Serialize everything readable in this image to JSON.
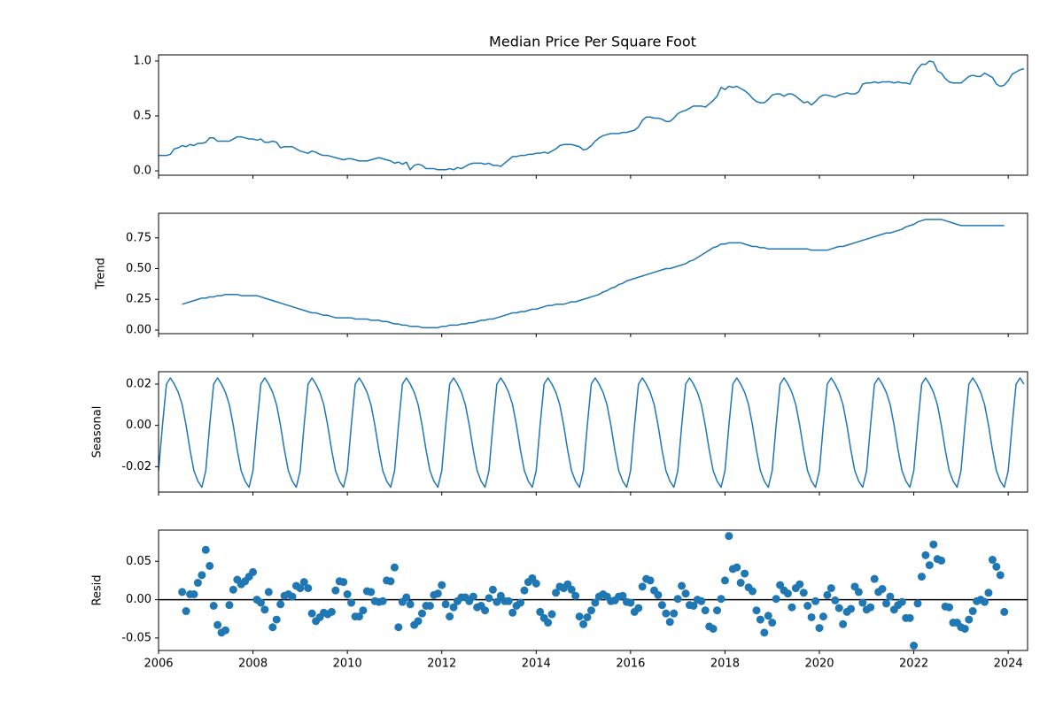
{
  "chart_data": {
    "type": "decomposition",
    "title": "Median Price Per Square Foot",
    "xlim": [
      2006,
      2024.41
    ],
    "xticks": [
      2006,
      2008,
      2010,
      2012,
      2014,
      2016,
      2018,
      2020,
      2022,
      2024
    ],
    "x": [
      2006,
      2006.083,
      2006.167,
      2006.25,
      2006.333,
      2006.417,
      2006.5,
      2006.583,
      2006.667,
      2006.75,
      2006.833,
      2006.917,
      2007,
      2007.083,
      2007.167,
      2007.25,
      2007.333,
      2007.417,
      2007.5,
      2007.583,
      2007.667,
      2007.75,
      2007.833,
      2007.917,
      2008,
      2008.083,
      2008.167,
      2008.25,
      2008.333,
      2008.417,
      2008.5,
      2008.583,
      2008.667,
      2008.75,
      2008.833,
      2008.917,
      2009,
      2009.083,
      2009.167,
      2009.25,
      2009.333,
      2009.417,
      2009.5,
      2009.583,
      2009.667,
      2009.75,
      2009.833,
      2009.917,
      2010,
      2010.083,
      2010.167,
      2010.25,
      2010.333,
      2010.417,
      2010.5,
      2010.583,
      2010.667,
      2010.75,
      2010.833,
      2010.917,
      2011,
      2011.083,
      2011.167,
      2011.25,
      2011.333,
      2011.417,
      2011.5,
      2011.583,
      2011.667,
      2011.75,
      2011.833,
      2011.917,
      2012,
      2012.083,
      2012.167,
      2012.25,
      2012.333,
      2012.417,
      2012.5,
      2012.583,
      2012.667,
      2012.75,
      2012.833,
      2012.917,
      2013,
      2013.083,
      2013.167,
      2013.25,
      2013.333,
      2013.417,
      2013.5,
      2013.583,
      2013.667,
      2013.75,
      2013.833,
      2013.917,
      2014,
      2014.083,
      2014.167,
      2014.25,
      2014.333,
      2014.417,
      2014.5,
      2014.583,
      2014.667,
      2014.75,
      2014.833,
      2014.917,
      2015,
      2015.083,
      2015.167,
      2015.25,
      2015.333,
      2015.417,
      2015.5,
      2015.583,
      2015.667,
      2015.75,
      2015.833,
      2015.917,
      2016,
      2016.083,
      2016.167,
      2016.25,
      2016.333,
      2016.417,
      2016.5,
      2016.583,
      2016.667,
      2016.75,
      2016.833,
      2016.917,
      2017,
      2017.083,
      2017.167,
      2017.25,
      2017.333,
      2017.417,
      2017.5,
      2017.583,
      2017.667,
      2017.75,
      2017.833,
      2017.917,
      2018,
      2018.083,
      2018.167,
      2018.25,
      2018.333,
      2018.417,
      2018.5,
      2018.583,
      2018.667,
      2018.75,
      2018.833,
      2018.917,
      2019,
      2019.083,
      2019.167,
      2019.25,
      2019.333,
      2019.417,
      2019.5,
      2019.583,
      2019.667,
      2019.75,
      2019.833,
      2019.917,
      2020,
      2020.083,
      2020.167,
      2020.25,
      2020.333,
      2020.417,
      2020.5,
      2020.583,
      2020.667,
      2020.75,
      2020.833,
      2020.917,
      2021,
      2021.083,
      2021.167,
      2021.25,
      2021.333,
      2021.417,
      2021.5,
      2021.583,
      2021.667,
      2021.75,
      2021.833,
      2021.917,
      2022,
      2022.083,
      2022.167,
      2022.25,
      2022.333,
      2022.417,
      2022.5,
      2022.583,
      2022.667,
      2022.75,
      2022.833,
      2022.917,
      2023,
      2023.083,
      2023.167,
      2023.25,
      2023.333,
      2023.417,
      2023.5,
      2023.583,
      2023.667,
      2023.75,
      2023.833,
      2023.917,
      2024,
      2024.083,
      2024.167,
      2024.25,
      2024.333
    ],
    "panels": [
      {
        "type": "line",
        "color": "#1f77b4",
        "ylim": [
          -0.04,
          1.056
        ],
        "yticks": [
          {
            "value": 0,
            "label": "0.0"
          },
          0.5,
          {
            "value": 1,
            "label": "1.0"
          }
        ],
        "values": [
          0.14,
          0.14,
          0.14,
          0.15,
          0.2,
          0.21,
          0.23,
          0.22,
          0.24,
          0.23,
          0.25,
          0.25,
          0.26,
          0.3,
          0.3,
          0.27,
          0.27,
          0.27,
          0.27,
          0.29,
          0.31,
          0.31,
          0.3,
          0.29,
          0.29,
          0.28,
          0.29,
          0.26,
          0.26,
          0.27,
          0.26,
          0.21,
          0.22,
          0.22,
          0.22,
          0.2,
          0.18,
          0.17,
          0.16,
          0.18,
          0.17,
          0.15,
          0.14,
          0.14,
          0.13,
          0.12,
          0.11,
          0.1,
          0.11,
          0.11,
          0.1,
          0.09,
          0.09,
          0.09,
          0.1,
          0.11,
          0.12,
          0.11,
          0.1,
          0.09,
          0.07,
          0.08,
          0.06,
          0.08,
          0.01,
          0.05,
          0.06,
          0.05,
          0.02,
          0.02,
          0.02,
          0.01,
          0.01,
          0.01,
          0.02,
          0.01,
          0.03,
          0.02,
          0.04,
          0.06,
          0.07,
          0.07,
          0.07,
          0.06,
          0.07,
          0.05,
          0.05,
          0.04,
          0.07,
          0.1,
          0.13,
          0.13,
          0.14,
          0.14,
          0.15,
          0.15,
          0.16,
          0.16,
          0.17,
          0.16,
          0.18,
          0.2,
          0.23,
          0.24,
          0.24,
          0.24,
          0.23,
          0.22,
          0.19,
          0.2,
          0.23,
          0.27,
          0.3,
          0.32,
          0.33,
          0.34,
          0.34,
          0.34,
          0.35,
          0.35,
          0.36,
          0.37,
          0.4,
          0.46,
          0.49,
          0.49,
          0.48,
          0.48,
          0.47,
          0.45,
          0.45,
          0.48,
          0.52,
          0.54,
          0.55,
          0.57,
          0.59,
          0.59,
          0.59,
          0.58,
          0.61,
          0.64,
          0.68,
          0.76,
          0.74,
          0.77,
          0.76,
          0.77,
          0.75,
          0.73,
          0.7,
          0.66,
          0.63,
          0.62,
          0.62,
          0.65,
          0.69,
          0.7,
          0.7,
          0.68,
          0.7,
          0.7,
          0.68,
          0.65,
          0.62,
          0.63,
          0.6,
          0.63,
          0.67,
          0.69,
          0.69,
          0.68,
          0.67,
          0.69,
          0.7,
          0.71,
          0.7,
          0.7,
          0.72,
          0.79,
          0.8,
          0.8,
          0.81,
          0.8,
          0.81,
          0.81,
          0.81,
          0.8,
          0.81,
          0.8,
          0.8,
          0.79,
          0.87,
          0.93,
          0.97,
          0.97,
          1.0,
          0.99,
          0.91,
          0.89,
          0.84,
          0.81,
          0.8,
          0.8,
          0.8,
          0.83,
          0.86,
          0.87,
          0.86,
          0.86,
          0.89,
          0.87,
          0.85,
          0.79,
          0.77,
          0.78,
          0.82,
          0.88,
          0.9,
          0.92,
          0.93
        ]
      },
      {
        "type": "line",
        "ylabel": "Trend",
        "color": "#1f77b4",
        "ylim": [
          -0.029,
          0.95
        ],
        "yticks": [
          {
            "value": 0,
            "label": "0.00"
          },
          {
            "value": 0.25,
            "label": "0.25"
          },
          {
            "value": 0.5,
            "label": "0.50"
          },
          {
            "value": 0.75,
            "label": "0.75"
          }
        ],
        "values": [
          null,
          null,
          null,
          null,
          null,
          null,
          0.21,
          0.22,
          0.23,
          0.24,
          0.25,
          0.26,
          0.26,
          0.27,
          0.27,
          0.28,
          0.28,
          0.29,
          0.29,
          0.29,
          0.29,
          0.28,
          0.28,
          0.28,
          0.28,
          0.28,
          0.27,
          0.26,
          0.25,
          0.24,
          0.23,
          0.22,
          0.21,
          0.2,
          0.19,
          0.18,
          0.17,
          0.16,
          0.15,
          0.14,
          0.14,
          0.13,
          0.12,
          0.12,
          0.11,
          0.1,
          0.1,
          0.1,
          0.1,
          0.1,
          0.09,
          0.09,
          0.09,
          0.09,
          0.08,
          0.08,
          0.08,
          0.07,
          0.07,
          0.06,
          0.05,
          0.05,
          0.04,
          0.04,
          0.03,
          0.03,
          0.03,
          0.02,
          0.02,
          0.02,
          0.02,
          0.02,
          0.03,
          0.03,
          0.04,
          0.04,
          0.04,
          0.05,
          0.05,
          0.06,
          0.06,
          0.07,
          0.08,
          0.08,
          0.09,
          0.09,
          0.1,
          0.11,
          0.12,
          0.13,
          0.14,
          0.14,
          0.15,
          0.15,
          0.16,
          0.17,
          0.17,
          0.18,
          0.19,
          0.2,
          0.2,
          0.21,
          0.21,
          0.21,
          0.22,
          0.23,
          0.23,
          0.24,
          0.25,
          0.26,
          0.27,
          0.28,
          0.29,
          0.31,
          0.32,
          0.34,
          0.35,
          0.37,
          0.38,
          0.4,
          0.41,
          0.42,
          0.43,
          0.44,
          0.45,
          0.46,
          0.47,
          0.48,
          0.49,
          0.5,
          0.5,
          0.51,
          0.52,
          0.53,
          0.54,
          0.56,
          0.57,
          0.59,
          0.61,
          0.63,
          0.65,
          0.67,
          0.68,
          0.7,
          0.7,
          0.71,
          0.71,
          0.71,
          0.71,
          0.7,
          0.69,
          0.68,
          0.68,
          0.67,
          0.67,
          0.66,
          0.66,
          0.66,
          0.66,
          0.66,
          0.66,
          0.66,
          0.66,
          0.66,
          0.66,
          0.66,
          0.65,
          0.65,
          0.65,
          0.65,
          0.65,
          0.66,
          0.67,
          0.68,
          0.68,
          0.69,
          0.7,
          0.71,
          0.72,
          0.73,
          0.74,
          0.75,
          0.76,
          0.77,
          0.78,
          0.79,
          0.79,
          0.8,
          0.81,
          0.82,
          0.84,
          0.85,
          0.86,
          0.88,
          0.89,
          0.9,
          0.9,
          0.9,
          0.9,
          0.9,
          0.89,
          0.88,
          0.87,
          0.86,
          0.85,
          0.85,
          0.85,
          0.85,
          0.85,
          0.85,
          0.85,
          0.85,
          0.85,
          0.85,
          0.85,
          0.85,
          null,
          null,
          null,
          null,
          null
        ]
      },
      {
        "type": "line",
        "ylabel": "Seasonal",
        "color": "#1f77b4",
        "ylim": [
          -0.0323,
          0.026
        ],
        "yticks": [
          -0.02,
          {
            "value": 0,
            "label": "0.00"
          },
          0.02
        ],
        "values": [
          -0.022,
          0.0,
          0.02,
          0.023,
          0.02,
          0.016,
          0.01,
          0.0,
          -0.012,
          -0.022,
          -0.027,
          -0.03,
          -0.022,
          0.0,
          0.02,
          0.023,
          0.02,
          0.016,
          0.01,
          0.0,
          -0.012,
          -0.022,
          -0.027,
          -0.03,
          -0.022,
          0.0,
          0.02,
          0.023,
          0.02,
          0.016,
          0.01,
          0.0,
          -0.012,
          -0.022,
          -0.027,
          -0.03,
          -0.022,
          0.0,
          0.02,
          0.023,
          0.02,
          0.016,
          0.01,
          0.0,
          -0.012,
          -0.022,
          -0.027,
          -0.03,
          -0.022,
          0.0,
          0.02,
          0.023,
          0.02,
          0.016,
          0.01,
          0.0,
          -0.012,
          -0.022,
          -0.027,
          -0.03,
          -0.022,
          0.0,
          0.02,
          0.023,
          0.02,
          0.016,
          0.01,
          0.0,
          -0.012,
          -0.022,
          -0.027,
          -0.03,
          -0.022,
          0.0,
          0.02,
          0.023,
          0.02,
          0.016,
          0.01,
          0.0,
          -0.012,
          -0.022,
          -0.027,
          -0.03,
          -0.022,
          0.0,
          0.02,
          0.023,
          0.02,
          0.016,
          0.01,
          0.0,
          -0.012,
          -0.022,
          -0.027,
          -0.03,
          -0.022,
          0.0,
          0.02,
          0.023,
          0.02,
          0.016,
          0.01,
          0.0,
          -0.012,
          -0.022,
          -0.027,
          -0.03,
          -0.022,
          0.0,
          0.02,
          0.023,
          0.02,
          0.016,
          0.01,
          0.0,
          -0.012,
          -0.022,
          -0.027,
          -0.03,
          -0.022,
          0.0,
          0.02,
          0.023,
          0.02,
          0.016,
          0.01,
          0.0,
          -0.012,
          -0.022,
          -0.027,
          -0.03,
          -0.022,
          0.0,
          0.02,
          0.023,
          0.02,
          0.016,
          0.01,
          0.0,
          -0.012,
          -0.022,
          -0.027,
          -0.03,
          -0.022,
          0.0,
          0.02,
          0.023,
          0.02,
          0.016,
          0.01,
          0.0,
          -0.012,
          -0.022,
          -0.027,
          -0.03,
          -0.022,
          0.0,
          0.02,
          0.023,
          0.02,
          0.016,
          0.01,
          0.0,
          -0.012,
          -0.022,
          -0.027,
          -0.03,
          -0.022,
          0.0,
          0.02,
          0.023,
          0.02,
          0.016,
          0.01,
          0.0,
          -0.012,
          -0.022,
          -0.027,
          -0.03,
          -0.022,
          0.0,
          0.02,
          0.023,
          0.02,
          0.016,
          0.01,
          0.0,
          -0.012,
          -0.022,
          -0.027,
          -0.03,
          -0.022,
          0.0,
          0.02,
          0.023,
          0.02,
          0.016,
          0.01,
          0.0,
          -0.012,
          -0.022,
          -0.027,
          -0.03,
          -0.022,
          0.0,
          0.02,
          0.023,
          0.02,
          0.016,
          0.01,
          0.0,
          -0.012,
          -0.022,
          -0.027,
          -0.03,
          -0.022,
          0.0,
          0.02,
          0.023,
          0.02
        ]
      },
      {
        "type": "scatter",
        "ylabel": "Resid",
        "color": "#1f77b4",
        "ylim": [
          -0.0663,
          0.0907
        ],
        "yticks": [
          -0.05,
          {
            "value": 0,
            "label": "0.00"
          },
          0.05
        ],
        "values": [
          null,
          null,
          null,
          null,
          null,
          null,
          0.01,
          -0.015,
          0.007,
          0.007,
          0.022,
          0.032,
          0.065,
          0.044,
          -0.008,
          -0.033,
          -0.043,
          -0.04,
          -0.007,
          0.013,
          0.026,
          0.02,
          0.024,
          0.03,
          0.036,
          0.0,
          -0.004,
          -0.013,
          0.01,
          -0.036,
          -0.026,
          -0.006,
          0.005,
          0.007,
          0.004,
          0.018,
          0.015,
          0.023,
          0.015,
          -0.018,
          -0.028,
          -0.023,
          -0.017,
          -0.019,
          -0.016,
          0.012,
          0.024,
          0.023,
          0.007,
          -0.004,
          -0.022,
          -0.022,
          -0.014,
          0.011,
          0.01,
          -0.002,
          -0.003,
          -0.002,
          0.025,
          0.024,
          0.042,
          -0.036,
          -0.003,
          0.003,
          -0.006,
          -0.033,
          -0.028,
          -0.018,
          -0.008,
          -0.008,
          0.006,
          0.008,
          0.019,
          -0.006,
          -0.022,
          -0.01,
          -0.002,
          0.003,
          0.003,
          -0.002,
          0.004,
          -0.01,
          -0.008,
          -0.014,
          0.002,
          0.013,
          -0.003,
          0.005,
          -0.002,
          -0.002,
          -0.017,
          -0.008,
          -0.004,
          0.012,
          0.023,
          0.028,
          0.021,
          -0.016,
          -0.024,
          -0.03,
          -0.019,
          0.009,
          0.017,
          0.015,
          0.02,
          0.013,
          0.005,
          -0.022,
          -0.032,
          -0.023,
          -0.014,
          -0.004,
          0.004,
          0.007,
          0.004,
          -0.002,
          -0.001,
          0.004,
          0.005,
          -0.003,
          -0.004,
          -0.016,
          -0.011,
          0.017,
          0.027,
          0.025,
          0.012,
          0.006,
          -0.007,
          -0.018,
          -0.029,
          -0.018,
          0.001,
          0.018,
          0.008,
          -0.007,
          -0.008,
          0.0,
          -0.002,
          -0.014,
          -0.035,
          -0.038,
          -0.014,
          0.001,
          0.025,
          0.083,
          0.04,
          0.042,
          0.022,
          0.034,
          0.016,
          0.011,
          -0.014,
          -0.026,
          -0.043,
          -0.021,
          -0.03,
          0.001,
          0.019,
          0.012,
          0.008,
          -0.01,
          0.015,
          0.02,
          0.009,
          -0.008,
          -0.023,
          -0.002,
          -0.037,
          -0.022,
          0.006,
          0.015,
          -0.001,
          -0.011,
          -0.032,
          -0.016,
          -0.012,
          0.017,
          0.01,
          -0.004,
          -0.013,
          -0.01,
          0.027,
          0.01,
          0.014,
          -0.005,
          0.004,
          -0.013,
          -0.007,
          -0.003,
          -0.024,
          -0.024,
          -0.06,
          -0.005,
          0.03,
          0.058,
          0.045,
          0.072,
          0.053,
          0.051,
          -0.009,
          -0.01,
          -0.03,
          -0.03,
          -0.036,
          -0.038,
          -0.026,
          -0.015,
          -0.002,
          0.0,
          -0.003,
          0.009,
          0.052,
          0.043,
          0.032,
          -0.016,
          null,
          null,
          null,
          null,
          null
        ]
      }
    ]
  }
}
